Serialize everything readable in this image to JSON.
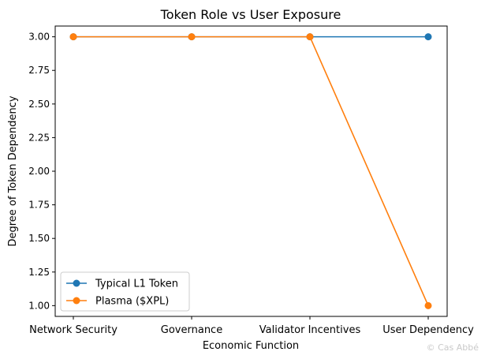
{
  "chart_data": {
    "type": "line",
    "title": "Token Role vs User Exposure",
    "xlabel": "Economic Function",
    "ylabel": "Degree of Token Dependency",
    "categories": [
      "Network Security",
      "Governance",
      "Validator Incentives",
      "User Dependency"
    ],
    "ylim": [
      0.92,
      3.08
    ],
    "yticks": [
      "1.00",
      "1.25",
      "1.50",
      "1.75",
      "2.00",
      "2.25",
      "2.50",
      "2.75",
      "3.00"
    ],
    "grid": false,
    "legend_position": "lower-left",
    "series": [
      {
        "name": "Typical L1 Token",
        "color": "#1f77b4",
        "marker": "circle",
        "values": [
          3,
          3,
          3,
          3
        ]
      },
      {
        "name": "Plasma ($XPL)",
        "color": "#ff7f0e",
        "marker": "circle",
        "values": [
          3,
          3,
          3,
          1
        ]
      }
    ]
  },
  "watermark": "© Cas Abbé"
}
